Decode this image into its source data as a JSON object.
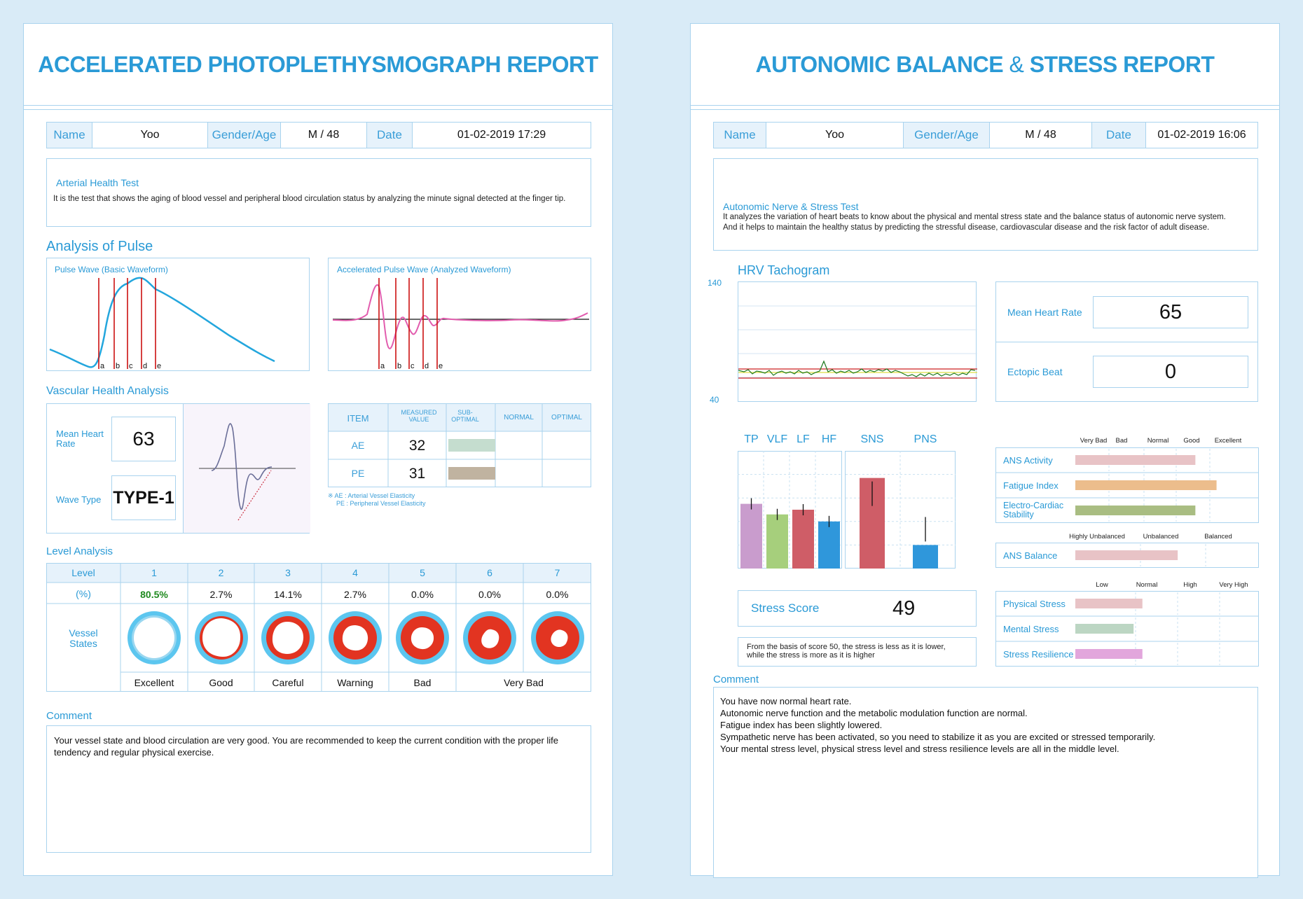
{
  "left": {
    "title": "ACCELERATED PHOTOPLETHYSMOGRAPH REPORT",
    "info": {
      "name_label": "Name",
      "name": "Yoo",
      "gender_label": "Gender/Age",
      "gender": "M / 48",
      "date_label": "Date",
      "date": "01-02-2019 17:29"
    },
    "test_title": "Arterial Health Test",
    "test_desc": "It is the test that shows the aging of blood vessel and peripheral blood circulation status by analyzing the minute signal detected at the finger tip.",
    "analysis_heading": "Analysis of Pulse",
    "pulse_wave_label": "Pulse Wave (Basic Waveform)",
    "accel_wave_label": "Accelerated Pulse Wave (Analyzed Waveform)",
    "wave_markers": [
      "a",
      "b",
      "c",
      "d",
      "e"
    ],
    "vascular_heading": "Vascular Health Analysis",
    "mean_hr_label": "Mean Heart Rate",
    "mean_hr_value": "63",
    "wave_type_label": "Wave Type",
    "wave_type_value": "TYPE-1",
    "item_table": {
      "headers": [
        "ITEM",
        "MEASURED VALUE",
        "SUB-OPTIMAL",
        "NORMAL",
        "OPTIMAL"
      ],
      "rows": [
        {
          "item": "AE",
          "value": "32",
          "bar_color": "#c5ddcf",
          "level": "SUB-OPTIMAL"
        },
        {
          "item": "PE",
          "value": "31",
          "bar_color": "#c0b3a0",
          "level": "SUB-OPTIMAL"
        }
      ],
      "note1": "※ AE : Arterial Vessel Elasticity",
      "note2": "PE : Peripheral Vessel Elasticity"
    },
    "level_heading": "Level Analysis",
    "level_table": {
      "level_label": "Level",
      "pct_label": "(%)",
      "vessel_label": "Vessel States",
      "levels": [
        "1",
        "2",
        "3",
        "4",
        "5",
        "6",
        "7"
      ],
      "percents": [
        "80.5%",
        "2.7%",
        "14.1%",
        "2.7%",
        "0.0%",
        "0.0%",
        "0.0%"
      ],
      "states": [
        "Excellent",
        "Good",
        "Careful",
        "Warning",
        "Bad",
        "Very Bad"
      ],
      "highlight_color": "#1f8a1f"
    },
    "comment_heading": "Comment",
    "comment": "Your vessel state and blood circulation are very good. You are recommended to keep the current condition with the proper life tendency and regular physical exercise."
  },
  "right": {
    "title_part1": "AUTONOMIC BALANCE",
    "title_amp": "&",
    "title_part2": "STRESS REPORT",
    "info": {
      "name_label": "Name",
      "name": "Yoo",
      "gender_label": "Gender/Age",
      "gender": "M / 48",
      "date_label": "Date",
      "date": "01-02-2019 16:06"
    },
    "test_title": "Autonomic Nerve & Stress Test",
    "test_desc1": "It analyzes the variation of heart beats to know about the physical and mental stress state and the balance status of autonomic nerve system.",
    "test_desc2": "And it helps to maintain the healthy status by predicting the stressful disease, cardiovascular disease and the risk factor of adult disease.",
    "hrv_heading": "HRV Tachogram",
    "hrv_ymax": "140",
    "hrv_ymin": "40",
    "mean_hr_label": "Mean Heart Rate",
    "mean_hr_value": "65",
    "ectopic_label": "Ectopic Beat",
    "ectopic_value": "0",
    "stress_score_label": "Stress Score",
    "stress_score_value": "49",
    "stress_note1": "From the basis of score 50, the stress is less as it is lower,",
    "stress_note2": "while the stress is more as it is higher",
    "comment_heading": "Comment",
    "comment_lines": [
      "You have now normal heart rate.",
      "Autonomic nerve function and the metabolic modulation function are normal.",
      "Fatigue index has been slightly lowered.",
      "Sympathetic nerve has been activated, so you need to stabilize it as you are excited or stressed temporarily.",
      "Your mental stress level, physical stress level and stress resilience levels are all in the middle level."
    ],
    "ans_scale": [
      "Very Bad",
      "Bad",
      "Normal",
      "Good",
      "Excellent"
    ],
    "ans_rows": [
      {
        "label": "ANS Activity",
        "value": 0.68,
        "color": "#e8c3c6"
      },
      {
        "label": "Fatigue Index",
        "value": 0.8,
        "color": "#ecbd8c"
      },
      {
        "label": "Electro-Cardiac Stability",
        "value": 0.68,
        "color": "#a9bd82"
      }
    ],
    "balance_scale": [
      "Highly Unbalanced",
      "Unbalanced",
      "Balanced"
    ],
    "balance_row": {
      "label": "ANS Balance",
      "value": 0.58,
      "color": "#e8c3c6"
    },
    "stress_scale": [
      "Low",
      "Normal",
      "High",
      "Very High"
    ],
    "stress_rows": [
      {
        "label": "Physical Stress",
        "value": 0.38,
        "color": "#e8c3c6"
      },
      {
        "label": "Mental Stress",
        "value": 0.33,
        "color": "#bcd6c3"
      },
      {
        "label": "Stress Resilience",
        "value": 0.38,
        "color": "#e2a6dc"
      }
    ]
  },
  "chart_data": [
    {
      "type": "bar",
      "categories": [
        "TP",
        "VLF",
        "LF",
        "HF"
      ],
      "values": [
        0.55,
        0.46,
        0.5,
        0.4
      ],
      "colors": [
        "#c99ccd",
        "#a6cf7c",
        "#cf5d67",
        "#2f97db"
      ]
    },
    {
      "type": "bar",
      "categories": [
        "SNS",
        "PNS"
      ],
      "values": [
        0.77,
        0.2
      ],
      "colors": [
        "#cf5d67",
        "#2f97db"
      ]
    }
  ]
}
